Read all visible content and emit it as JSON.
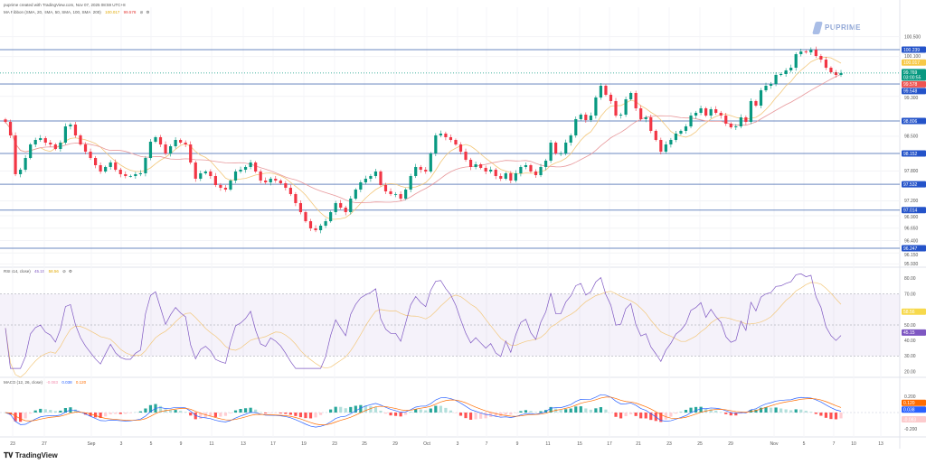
{
  "header": {
    "created": "puprime created with TradingView.com, Nov 07, 2025 08:59 UTC+8",
    "ma_ribbon": {
      "name": "MA Ribbon (SMA, 20, SMA, 50, SMA, 100, SMA, 200)",
      "v1": "100.017",
      "v2": "99.578"
    },
    "rsi": {
      "name": "RSI (14, close)",
      "v1": "45.15",
      "v2": "58.56"
    },
    "macd": {
      "name": "MACD (12, 26, close)",
      "v1": "-0.083",
      "v2": "0.038",
      "v3": "0.120"
    }
  },
  "branding": {
    "watermark": "PUPRIME",
    "footer": "TradingView"
  },
  "colors": {
    "up": "#089981",
    "down": "#f23645",
    "ma_fast": "#f3c77a",
    "ma_slow": "#e8999c",
    "level_line": "#5c7cba",
    "level_label": "#2453c9",
    "rsi": "#7e57c2",
    "rsi_ma": "#f3c77a",
    "macd": "#2962ff",
    "signal": "#ff6d00"
  },
  "chart_data": [
    {
      "type": "candlestick",
      "title": "",
      "yticks": [
        "100.500",
        "100.100",
        "99.300",
        "98.500",
        "97.800",
        "97.200",
        "96.900",
        "96.650",
        "96.400",
        "96.150",
        "95.930"
      ],
      "ytick_values": [
        100.5,
        100.1,
        99.3,
        98.5,
        97.8,
        97.2,
        96.9,
        96.65,
        96.4,
        96.15,
        95.93
      ],
      "ylim": [
        95.9,
        100.8
      ],
      "xticks": [
        "23",
        "27",
        "Sep",
        "3",
        "5",
        "9",
        "11",
        "13",
        "17",
        "19",
        "23",
        "25",
        "29",
        "Oct",
        "3",
        "7",
        "9",
        "11",
        "15",
        "17",
        "21",
        "23",
        "25",
        "29",
        "Nov",
        "5",
        "7",
        "10",
        "13"
      ],
      "horizontal_levels": [
        {
          "value": 100.239,
          "label": "100.239"
        },
        {
          "value": 99.548,
          "label": "99.548"
        },
        {
          "value": 98.806,
          "label": "98.806"
        },
        {
          "value": 98.152,
          "label": "98.152"
        },
        {
          "value": 97.532,
          "label": "97.532"
        },
        {
          "value": 97.014,
          "label": "97.014"
        },
        {
          "value": 96.247,
          "label": "96.247"
        }
      ],
      "last_price": {
        "value": 99.769,
        "label": "99.769",
        "countdown": "03:00:55"
      },
      "ma_labels": [
        {
          "label": "100.017",
          "value": 100.017,
          "color": "#f7c948"
        },
        {
          "label": "99.578",
          "value": 99.578,
          "color": "#ef5350"
        }
      ],
      "closes": [
        98.787,
        98.515,
        97.735,
        97.825,
        98.061,
        98.333,
        98.424,
        98.46,
        98.37,
        98.333,
        98.243,
        98.37,
        98.696,
        98.733,
        98.515,
        98.333,
        98.188,
        98.061,
        97.916,
        97.789,
        97.88,
        97.97,
        97.825,
        97.735,
        97.698,
        97.698,
        97.735,
        97.753,
        98.061,
        98.388,
        98.479,
        98.333,
        98.152,
        98.297,
        98.424,
        98.37,
        98.333,
        97.97,
        97.644,
        97.753,
        97.789,
        97.698,
        97.517,
        97.462,
        97.426,
        97.607,
        97.789,
        97.825,
        97.88,
        97.97,
        97.789,
        97.607,
        97.571,
        97.644,
        97.607,
        97.553,
        97.462,
        97.335,
        97.154,
        96.972,
        96.79,
        96.646,
        96.609,
        96.7,
        96.79,
        96.972,
        97.154,
        97.063,
        96.972,
        97.244,
        97.426,
        97.571,
        97.644,
        97.698,
        97.789,
        97.517,
        97.39,
        97.335,
        97.335,
        97.244,
        97.426,
        97.698,
        97.88,
        97.825,
        97.789,
        98.152,
        98.515,
        98.551,
        98.479,
        98.424,
        98.333,
        98.188,
        98.025,
        97.88,
        97.934,
        97.862,
        97.789,
        97.825,
        97.698,
        97.644,
        97.753,
        97.607,
        97.753,
        97.88,
        97.916,
        97.789,
        97.716,
        97.88,
        98.007,
        98.37,
        98.152,
        98.152,
        98.37,
        98.515,
        98.842,
        98.932,
        98.823,
        98.914,
        99.277,
        99.513,
        99.332,
        99.205,
        98.914,
        98.932,
        99.241,
        99.368,
        99.059,
        98.842,
        98.878,
        98.606,
        98.424,
        98.188,
        98.333,
        98.424,
        98.551,
        98.606,
        98.696,
        98.914,
        98.969,
        99.059,
        98.914,
        99.041,
        98.969,
        98.914,
        98.751,
        98.678,
        98.696,
        98.878,
        98.787,
        99.205,
        99.114,
        99.422,
        99.513,
        99.549,
        99.731,
        99.749,
        99.822,
        99.876,
        100.148,
        100.203,
        100.185,
        100.239,
        100.112,
        100.039,
        99.876,
        99.785,
        99.731,
        99.769
      ]
    },
    {
      "type": "line",
      "title": "RSI (14, close)",
      "yticks": [
        "80.00",
        "70.00",
        "50.00",
        "40.00",
        "30.00",
        "20.00"
      ],
      "ytick_values": [
        80,
        70,
        50,
        40,
        30,
        20
      ],
      "band": [
        30,
        70
      ],
      "midline": 50,
      "labels": [
        {
          "label": "58.56",
          "value": 58.56,
          "color": "#f7d94c",
          "text_color": "#333"
        },
        {
          "label": "45.15",
          "value": 45.15,
          "color": "#7e57c2",
          "text_color": "#fff"
        }
      ]
    },
    {
      "type": "bar",
      "title": "MACD (12, 26, close)",
      "yticks": [
        "0.200",
        "-0.200"
      ],
      "ytick_values": [
        0.2,
        -0.2
      ],
      "labels": [
        {
          "label": "0.120",
          "value": 0.12,
          "color": "#ff6d00",
          "text_color": "#fff"
        },
        {
          "label": "0.038",
          "value": 0.038,
          "color": "#2962ff",
          "text_color": "#fff"
        },
        {
          "label": "-0.083",
          "value": -0.083,
          "color": "#fccbcd",
          "text_color": "#c62828"
        }
      ]
    }
  ]
}
